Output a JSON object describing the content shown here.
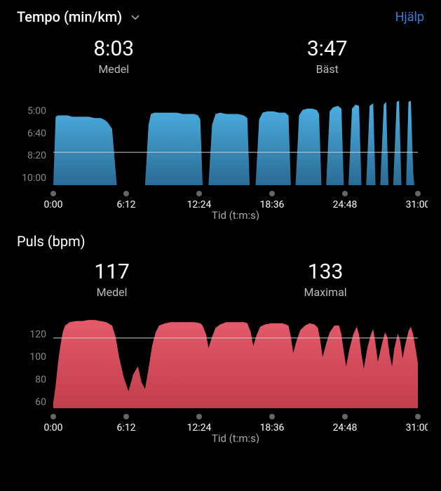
{
  "header": {
    "dropdown_label": "Tempo (min/km)",
    "help_label": "Hjälp"
  },
  "tempo": {
    "avg_value": "8:03",
    "avg_label": "Medel",
    "best_value": "3:47",
    "best_label": "Bäst",
    "yticks": [
      "5:00",
      "6:40",
      "8:20",
      "10:00"
    ],
    "ylim_pace": [
      3.5,
      10.5
    ],
    "color_top": "#4db3e6",
    "color_bottom": "#2a6b94",
    "avgline_pace": 8.05,
    "avgline_color": "#cccccc",
    "axis_title": "Tid (t:m:s)",
    "xticks": [
      "0:00",
      "6:12",
      "12:24",
      "18:36",
      "24:48",
      "31:00"
    ],
    "xlim": [
      0,
      31.0
    ],
    "pace_data": [
      [
        0.0,
        10.5
      ],
      [
        0.2,
        5.4
      ],
      [
        0.4,
        5.3
      ],
      [
        0.8,
        5.3
      ],
      [
        1.2,
        5.3
      ],
      [
        1.6,
        5.4
      ],
      [
        2.0,
        5.4
      ],
      [
        2.5,
        5.4
      ],
      [
        3.0,
        5.4
      ],
      [
        3.5,
        5.5
      ],
      [
        4.0,
        5.5
      ],
      [
        4.3,
        5.6
      ],
      [
        4.6,
        5.8
      ],
      [
        5.0,
        6.3
      ],
      [
        5.4,
        10.5
      ],
      [
        7.8,
        10.5
      ],
      [
        8.1,
        6.0
      ],
      [
        8.3,
        5.2
      ],
      [
        8.6,
        5.1
      ],
      [
        9.0,
        5.1
      ],
      [
        9.5,
        5.1
      ],
      [
        10.0,
        5.1
      ],
      [
        10.5,
        5.1
      ],
      [
        11.0,
        5.2
      ],
      [
        11.5,
        5.2
      ],
      [
        12.0,
        5.2
      ],
      [
        12.3,
        5.3
      ],
      [
        12.5,
        5.6
      ],
      [
        12.7,
        10.5
      ],
      [
        13.2,
        10.5
      ],
      [
        13.5,
        6.0
      ],
      [
        13.8,
        5.2
      ],
      [
        14.2,
        5.1
      ],
      [
        14.7,
        5.2
      ],
      [
        15.2,
        5.2
      ],
      [
        15.7,
        5.2
      ],
      [
        16.2,
        5.3
      ],
      [
        16.5,
        5.5
      ],
      [
        16.7,
        10.5
      ],
      [
        17.2,
        10.5
      ],
      [
        17.5,
        5.6
      ],
      [
        17.8,
        5.1
      ],
      [
        18.2,
        5.0
      ],
      [
        18.7,
        5.0
      ],
      [
        19.2,
        5.1
      ],
      [
        19.7,
        5.1
      ],
      [
        20.0,
        5.3
      ],
      [
        20.2,
        10.5
      ],
      [
        20.6,
        10.5
      ],
      [
        20.9,
        5.3
      ],
      [
        21.2,
        4.9
      ],
      [
        21.6,
        4.8
      ],
      [
        22.0,
        4.8
      ],
      [
        22.4,
        4.9
      ],
      [
        22.6,
        5.2
      ],
      [
        22.8,
        10.5
      ],
      [
        23.2,
        10.5
      ],
      [
        23.5,
        5.0
      ],
      [
        23.8,
        4.7
      ],
      [
        24.2,
        4.6
      ],
      [
        24.5,
        4.8
      ],
      [
        24.7,
        10.5
      ],
      [
        25.1,
        10.5
      ],
      [
        25.4,
        4.8
      ],
      [
        25.7,
        4.5
      ],
      [
        26.0,
        4.6
      ],
      [
        26.2,
        10.5
      ],
      [
        26.6,
        10.5
      ],
      [
        26.9,
        4.6
      ],
      [
        27.2,
        4.4
      ],
      [
        27.4,
        10.5
      ],
      [
        27.8,
        10.5
      ],
      [
        28.1,
        4.5
      ],
      [
        28.3,
        4.3
      ],
      [
        28.5,
        10.5
      ],
      [
        28.9,
        10.5
      ],
      [
        29.2,
        4.3
      ],
      [
        29.4,
        4.2
      ],
      [
        29.6,
        10.5
      ],
      [
        30.0,
        10.5
      ],
      [
        30.2,
        4.3
      ],
      [
        30.4,
        4.2
      ],
      [
        30.6,
        9.5
      ],
      [
        30.7,
        10.5
      ],
      [
        31.0,
        10.5
      ]
    ]
  },
  "pulse": {
    "title": "Puls (bpm)",
    "avg_value": "117",
    "avg_label": "Medel",
    "max_value": "133",
    "max_label": "Maximal",
    "yticks": [
      "120",
      "100",
      "80",
      "60"
    ],
    "ylim": [
      55,
      138
    ],
    "color_top": "#e45a6a",
    "color_bottom": "#c23d4d",
    "avgline_hr": 117,
    "avgline_color": "#cccccc",
    "axis_title": "Tid (t:m:s)",
    "xticks": [
      "0:00",
      "6:12",
      "12:24",
      "18:36",
      "24:48",
      "31:00"
    ],
    "xlim": [
      0,
      31.0
    ],
    "hr_data": [
      [
        0.0,
        60
      ],
      [
        0.2,
        75
      ],
      [
        0.4,
        95
      ],
      [
        0.6,
        110
      ],
      [
        0.8,
        122
      ],
      [
        1.0,
        128
      ],
      [
        1.4,
        131
      ],
      [
        2.0,
        132
      ],
      [
        2.5,
        132
      ],
      [
        3.0,
        133
      ],
      [
        3.5,
        133
      ],
      [
        4.0,
        132
      ],
      [
        4.5,
        131
      ],
      [
        5.0,
        128
      ],
      [
        5.3,
        118
      ],
      [
        5.6,
        100
      ],
      [
        6.0,
        82
      ],
      [
        6.4,
        70
      ],
      [
        6.8,
        85
      ],
      [
        7.2,
        92
      ],
      [
        7.5,
        78
      ],
      [
        7.8,
        72
      ],
      [
        8.1,
        90
      ],
      [
        8.4,
        110
      ],
      [
        8.7,
        122
      ],
      [
        9.0,
        128
      ],
      [
        9.5,
        130
      ],
      [
        10.0,
        131
      ],
      [
        10.5,
        131
      ],
      [
        11.0,
        131
      ],
      [
        11.5,
        131
      ],
      [
        12.0,
        131
      ],
      [
        12.5,
        130
      ],
      [
        12.7,
        128
      ],
      [
        13.0,
        120
      ],
      [
        13.2,
        108
      ],
      [
        13.5,
        118
      ],
      [
        13.8,
        126
      ],
      [
        14.2,
        129
      ],
      [
        14.7,
        131
      ],
      [
        15.2,
        131
      ],
      [
        15.7,
        131
      ],
      [
        16.2,
        131
      ],
      [
        16.5,
        130
      ],
      [
        16.8,
        122
      ],
      [
        17.0,
        110
      ],
      [
        17.3,
        120
      ],
      [
        17.6,
        127
      ],
      [
        18.0,
        129
      ],
      [
        18.5,
        130
      ],
      [
        19.0,
        130
      ],
      [
        19.5,
        130
      ],
      [
        20.0,
        128
      ],
      [
        20.2,
        118
      ],
      [
        20.4,
        104
      ],
      [
        20.7,
        115
      ],
      [
        21.0,
        124
      ],
      [
        21.4,
        128
      ],
      [
        21.8,
        130
      ],
      [
        22.2,
        129
      ],
      [
        22.5,
        126
      ],
      [
        22.7,
        115
      ],
      [
        22.9,
        100
      ],
      [
        23.2,
        112
      ],
      [
        23.5,
        122
      ],
      [
        23.9,
        128
      ],
      [
        24.3,
        128
      ],
      [
        24.5,
        120
      ],
      [
        24.7,
        105
      ],
      [
        24.9,
        92
      ],
      [
        25.2,
        108
      ],
      [
        25.5,
        120
      ],
      [
        25.8,
        127
      ],
      [
        26.0,
        120
      ],
      [
        26.2,
        103
      ],
      [
        26.4,
        90
      ],
      [
        26.7,
        108
      ],
      [
        27.0,
        120
      ],
      [
        27.2,
        125
      ],
      [
        27.4,
        112
      ],
      [
        27.6,
        96
      ],
      [
        27.9,
        110
      ],
      [
        28.2,
        122
      ],
      [
        28.4,
        118
      ],
      [
        28.6,
        102
      ],
      [
        28.8,
        92
      ],
      [
        29.0,
        108
      ],
      [
        29.3,
        121
      ],
      [
        29.5,
        114
      ],
      [
        29.7,
        99
      ],
      [
        29.9,
        110
      ],
      [
        30.2,
        123
      ],
      [
        30.4,
        127
      ],
      [
        30.6,
        120
      ],
      [
        30.8,
        108
      ],
      [
        31.0,
        95
      ]
    ]
  }
}
